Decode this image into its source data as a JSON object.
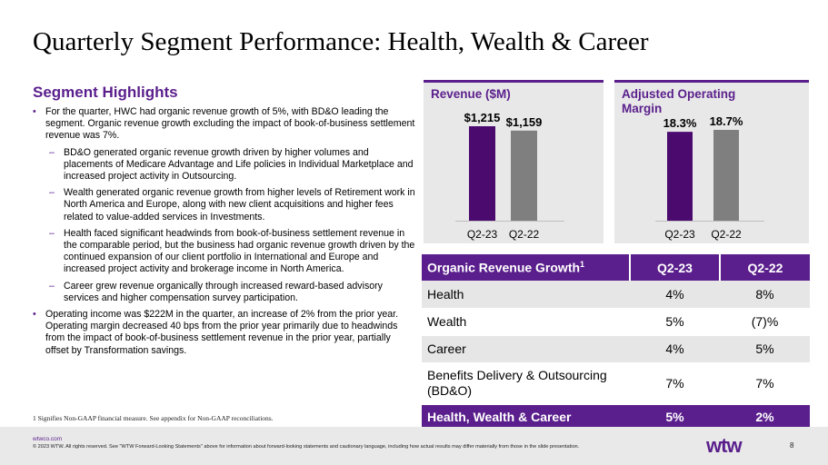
{
  "title": "Quarterly Segment Performance: Health, Wealth & Career",
  "highlights": {
    "heading": "Segment Highlights",
    "bullet_marker": "•",
    "dash_marker": "–",
    "items": [
      "For the quarter, HWC had organic revenue growth of 5%, with BD&O leading the segment. Organic revenue growth excluding the impact of book-of-business settlement revenue was 7%.",
      "BD&O generated organic revenue growth driven by higher volumes and placements of Medicare Advantage and Life policies in Individual Marketplace and increased project activity in Outsourcing.",
      "Wealth generated organic revenue growth from higher levels of Retirement work in North America and Europe, along with new client acquisitions and higher fees related to value-added services in Investments.",
      "Health faced significant headwinds from book-of-business settlement revenue in the comparable period, but the business had organic revenue growth driven by the continued expansion of our client portfolio in International and Europe and increased project activity and brokerage income in North America.",
      "Career grew revenue organically through increased reward-based advisory services and higher compensation survey participation.",
      "Operating income was $222M in the quarter, an increase of 2% from the prior year. Operating margin decreased 40 bps from the prior year primarily due to headwinds from the impact of book-of-business settlement revenue in the prior year, partially offset by Transformation savings."
    ]
  },
  "footnote": "1 Signifies Non-GAAP financial measure. See appendix for Non-GAAP reconciliations.",
  "chart_data": [
    {
      "type": "bar",
      "title": "Revenue ($M)",
      "categories": [
        "Q2-23",
        "Q2-22"
      ],
      "values": [
        1215,
        1159
      ],
      "labels": [
        "$1,215",
        "$1,159"
      ],
      "colors": [
        "#4b0a6e",
        "#7f7f7f"
      ],
      "ylim": [
        0,
        1400
      ]
    },
    {
      "type": "bar",
      "title": "Adjusted Operating Margin",
      "categories": [
        "Q2-23",
        "Q2-22"
      ],
      "values": [
        18.3,
        18.7
      ],
      "labels": [
        "18.3%",
        "18.7%"
      ],
      "colors": [
        "#4b0a6e",
        "#7f7f7f"
      ],
      "ylim": [
        0,
        20
      ]
    }
  ],
  "table": {
    "header": {
      "label": "Organic Revenue Growth",
      "sup": "1",
      "col1": "Q2-23",
      "col2": "Q2-22"
    },
    "rows": [
      {
        "label": "Health",
        "q2_23": "4%",
        "q2_22": "8%"
      },
      {
        "label": "Wealth",
        "q2_23": "5%",
        "q2_22": "(7)%"
      },
      {
        "label": "Career",
        "q2_23": "4%",
        "q2_22": "5%"
      },
      {
        "label": "Benefits Delivery & Outsourcing (BD&O)",
        "q2_23": "7%",
        "q2_22": "7%"
      }
    ],
    "total": {
      "label": "Health, Wealth & Career",
      "q2_23": "5%",
      "q2_22": "2%"
    }
  },
  "footer": {
    "site": "wtwco.com",
    "copyright": "© 2023 WTW. All rights reserved. See \"WTW Forward-Looking Statements\" above for information about forward-looking statements and cautionary language, including how actual results may differ materially from those in the slide presentation.",
    "logo": "wtw",
    "page": "8"
  },
  "colors": {
    "accent": "#5a1f8c",
    "bar_current": "#4b0a6e",
    "bar_prior": "#7f7f7f",
    "panel_bg": "#e8e8e8"
  }
}
